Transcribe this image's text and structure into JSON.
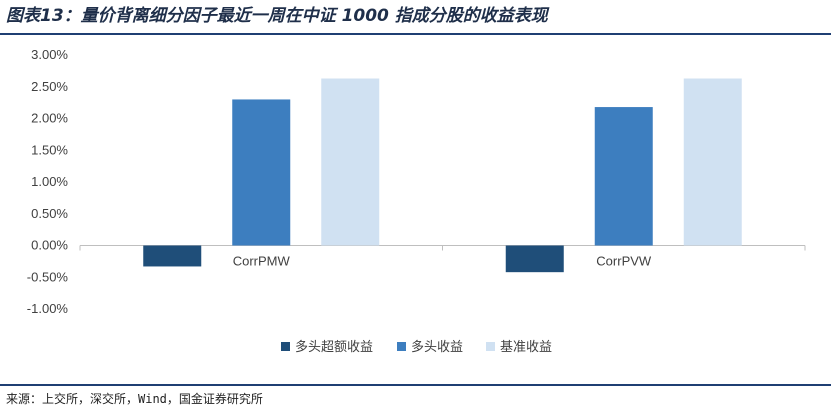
{
  "title": "图表13：量价背离细分因子最近一周在中证 1000 指成分股的收益表现",
  "source": "来源：上交所，深交所，Wind，国金证券研究所",
  "chart_data": {
    "type": "bar",
    "categories": [
      "CorrPMW",
      "CorrPVW"
    ],
    "series": [
      {
        "name": "多头超额收益",
        "color": "#1f4e79",
        "values": [
          -0.33,
          -0.42
        ]
      },
      {
        "name": "多头收益",
        "color": "#3d7ebf",
        "values": [
          2.3,
          2.18
        ]
      },
      {
        "name": "基准收益",
        "color": "#d0e1f2",
        "values": [
          2.63,
          2.63
        ]
      }
    ],
    "ylim": [
      -1.0,
      3.0
    ],
    "yticks": [
      "3.00%",
      "2.50%",
      "2.00%",
      "1.50%",
      "1.00%",
      "0.50%",
      "0.00%",
      "-0.50%",
      "-1.00%"
    ],
    "grid": false,
    "legend_position": "bottom"
  }
}
